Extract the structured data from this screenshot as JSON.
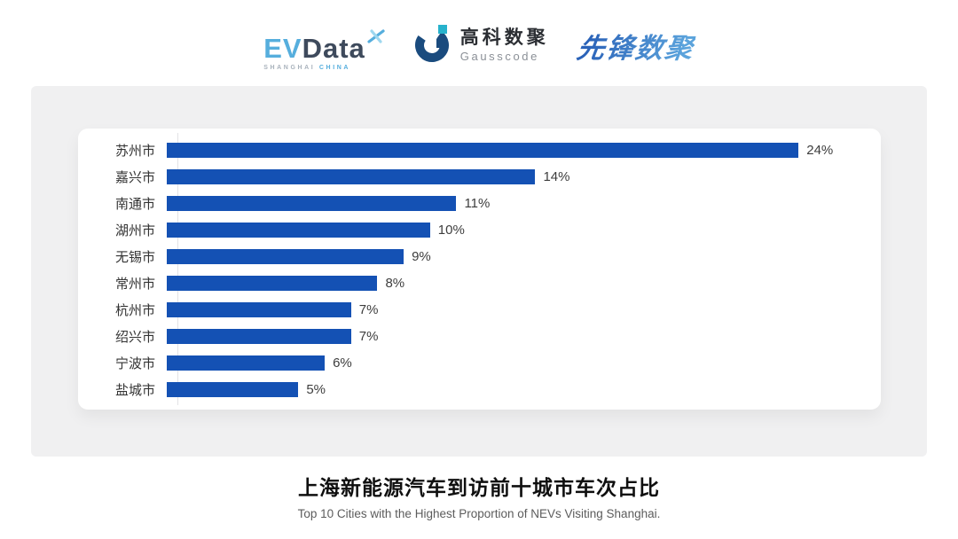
{
  "header": {
    "logos": {
      "evdata": {
        "text_primary": "EV",
        "text_secondary": "Data",
        "subtext_left": "SHANGHAI",
        "subtext_right": "CHINA",
        "color_light_blue": "#56aedd",
        "color_dark_slate": "#3e4a5c"
      },
      "gausscode": {
        "cn": "高科数聚",
        "en": "Gausscode",
        "color_dark_blue": "#1a4b7e",
        "color_teal": "#27b2cc"
      },
      "xianfeng": {
        "text": "先锋数聚",
        "color_blue": "#2e6fc1"
      }
    }
  },
  "chart_data": {
    "type": "bar",
    "orientation": "horizontal",
    "categories": [
      "苏州市",
      "嘉兴市",
      "南通市",
      "湖州市",
      "无锡市",
      "常州市",
      "杭州市",
      "绍兴市",
      "宁波市",
      "盐城市"
    ],
    "values": [
      24,
      14,
      11,
      10,
      9,
      8,
      7,
      7,
      6,
      5
    ],
    "value_labels": [
      "24%",
      "14%",
      "11%",
      "10%",
      "9%",
      "8%",
      "7%",
      "7%",
      "6%",
      "5%"
    ],
    "title": "上海新能源汽车到访前十城市车次占比",
    "subtitle": "Top 10 Cities with the Highest Proportion of  NEVs Visiting Shanghai.",
    "xlabel": "",
    "ylabel": "",
    "xlim": [
      0,
      24
    ],
    "grid": false,
    "legend": false,
    "bar_color": "#1451b4",
    "axis_line_color": "#e3e3e6"
  },
  "footer": {
    "title": "上海新能源汽车到访前十城市车次占比",
    "subtitle": "Top 10 Cities with the Highest Proportion of  NEVs Visiting Shanghai."
  }
}
